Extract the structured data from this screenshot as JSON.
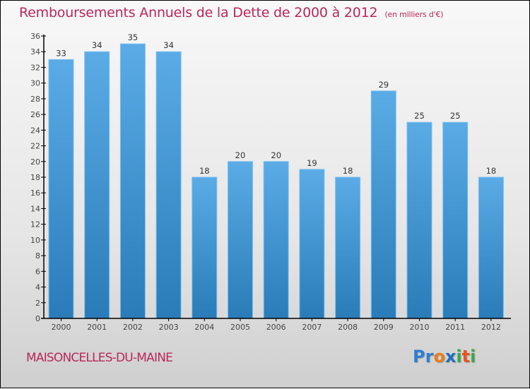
{
  "chart_data": {
    "type": "bar",
    "title": "Remboursements Annuels de la Dette de 2000 à 2012",
    "subtitle": "(en milliers d'€)",
    "xlabel": "",
    "ylabel": "",
    "categories": [
      "2000",
      "2001",
      "2002",
      "2003",
      "2004",
      "2005",
      "2006",
      "2007",
      "2008",
      "2009",
      "2010",
      "2011",
      "2012"
    ],
    "values": [
      33,
      34,
      35,
      34,
      18,
      20,
      20,
      19,
      18,
      29,
      25,
      25,
      18
    ],
    "ylim": [
      0,
      36
    ],
    "yticks": [
      0,
      2,
      4,
      6,
      8,
      10,
      12,
      14,
      16,
      18,
      20,
      22,
      24,
      26,
      28,
      30,
      32,
      34,
      36
    ],
    "grid": false,
    "legend": "none",
    "bar_color_top": "#5aabe6",
    "bar_color_bottom": "#2a7cb8"
  },
  "footer": {
    "city": "MAISONCELLES-DU-MAINE",
    "logo": [
      {
        "text": "P",
        "color": "#2e7fd0"
      },
      {
        "text": "r",
        "color": "#2e7fd0"
      },
      {
        "text": "o",
        "color": "#e87d1e"
      },
      {
        "text": "x",
        "color": "#1f6fc0"
      },
      {
        "text": "i",
        "color": "#3aa84a"
      },
      {
        "text": "t",
        "color": "#e8531e"
      },
      {
        "text": "i",
        "color": "#3aa84a"
      }
    ]
  },
  "colors": {
    "title": "#b8275a",
    "axis": "#000000"
  }
}
